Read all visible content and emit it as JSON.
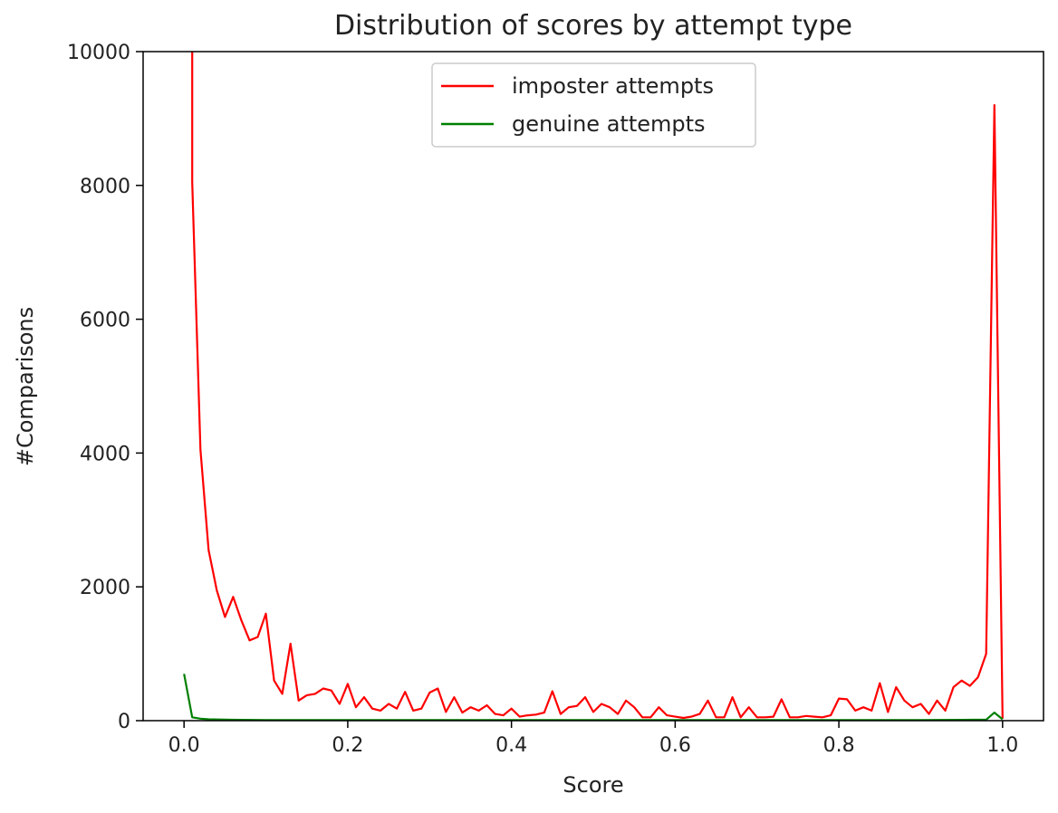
{
  "chart_data": {
    "type": "line",
    "title": "Distribution of scores by attempt type",
    "xlabel": "Score",
    "ylabel": "#Comparisons",
    "xlim": [
      -0.05,
      1.05
    ],
    "ylim": [
      0,
      10000
    ],
    "x_ticks": [
      0.0,
      0.2,
      0.4,
      0.6,
      0.8,
      1.0
    ],
    "x_tick_labels": [
      "0.0",
      "0.2",
      "0.4",
      "0.6",
      "0.8",
      "1.0"
    ],
    "y_ticks": [
      0,
      2000,
      4000,
      6000,
      8000,
      10000
    ],
    "y_tick_labels": [
      "0",
      "2000",
      "4000",
      "6000",
      "8000",
      "10000"
    ],
    "grid": false,
    "legend_position": "top-center",
    "series": [
      {
        "name": "imposter attempts",
        "color": "#ff0000",
        "x": [
          0.01,
          0.01,
          0.02,
          0.03,
          0.04,
          0.05,
          0.06,
          0.07,
          0.08,
          0.09,
          0.1,
          0.11,
          0.12,
          0.13,
          0.14,
          0.15,
          0.16,
          0.17,
          0.18,
          0.19,
          0.2,
          0.21,
          0.22,
          0.23,
          0.24,
          0.25,
          0.26,
          0.27,
          0.28,
          0.29,
          0.3,
          0.31,
          0.32,
          0.33,
          0.34,
          0.35,
          0.36,
          0.37,
          0.38,
          0.39,
          0.4,
          0.41,
          0.42,
          0.43,
          0.44,
          0.45,
          0.46,
          0.47,
          0.48,
          0.49,
          0.5,
          0.51,
          0.52,
          0.53,
          0.54,
          0.55,
          0.56,
          0.57,
          0.58,
          0.59,
          0.6,
          0.61,
          0.62,
          0.63,
          0.64,
          0.65,
          0.66,
          0.67,
          0.68,
          0.69,
          0.7,
          0.71,
          0.72,
          0.73,
          0.74,
          0.75,
          0.76,
          0.77,
          0.78,
          0.79,
          0.8,
          0.81,
          0.82,
          0.83,
          0.84,
          0.85,
          0.86,
          0.87,
          0.88,
          0.89,
          0.9,
          0.91,
          0.92,
          0.93,
          0.94,
          0.95,
          0.96,
          0.97,
          0.98,
          0.99,
          1.0
        ],
        "values": [
          10000,
          8050,
          4050,
          2550,
          1950,
          1550,
          1850,
          1500,
          1200,
          1250,
          1600,
          600,
          400,
          1150,
          300,
          380,
          400,
          480,
          450,
          250,
          550,
          200,
          350,
          180,
          150,
          250,
          180,
          430,
          150,
          180,
          420,
          480,
          130,
          350,
          120,
          200,
          150,
          230,
          100,
          80,
          180,
          60,
          80,
          90,
          120,
          440,
          100,
          200,
          220,
          350,
          130,
          250,
          200,
          100,
          300,
          200,
          50,
          50,
          200,
          80,
          60,
          40,
          60,
          100,
          300,
          50,
          50,
          350,
          50,
          200,
          50,
          50,
          60,
          320,
          50,
          50,
          70,
          60,
          50,
          80,
          330,
          320,
          150,
          200,
          150,
          560,
          130,
          500,
          300,
          200,
          250,
          100,
          300,
          150,
          500,
          600,
          520,
          650,
          1000,
          9200,
          30
        ]
      },
      {
        "name": "genuine attempts",
        "color": "#008000",
        "x": [
          0.0,
          0.01,
          0.02,
          0.03,
          0.05,
          0.1,
          0.2,
          0.3,
          0.4,
          0.5,
          0.6,
          0.7,
          0.8,
          0.9,
          0.95,
          0.98,
          0.99,
          1.0
        ],
        "values": [
          700,
          50,
          30,
          20,
          15,
          10,
          10,
          8,
          8,
          8,
          8,
          8,
          8,
          10,
          12,
          15,
          120,
          20
        ]
      }
    ]
  }
}
